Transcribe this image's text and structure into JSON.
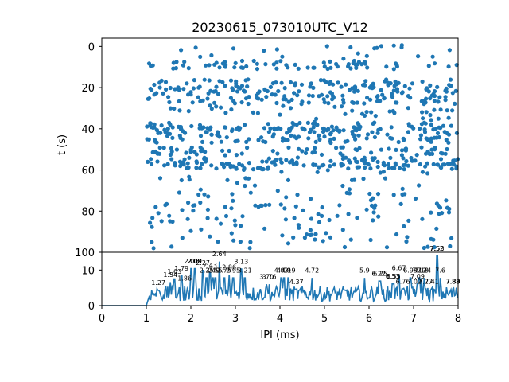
{
  "chart_data": [
    {
      "type": "scatter",
      "title": "20230615_073010UTC_V12",
      "ylabel": "t (s)",
      "xlim": [
        0,
        8
      ],
      "ylim": [
        100,
        -4
      ],
      "y_inverted": true,
      "yticks": [
        0,
        20,
        40,
        60,
        80,
        100
      ],
      "marker_color": "#1f77b4",
      "x_range_of_points": [
        1.0,
        8.0
      ],
      "event_rows_t": [
        2,
        9,
        18,
        22,
        26,
        30,
        33,
        39,
        41,
        45,
        51,
        56,
        58,
        62,
        68,
        75,
        78,
        81,
        85,
        91,
        95
      ]
    },
    {
      "type": "line",
      "xlabel": "IPI (ms)",
      "xlim": [
        0,
        8
      ],
      "ylim": [
        0,
        15
      ],
      "xticks": [
        0,
        1,
        2,
        3,
        4,
        5,
        6,
        7,
        8
      ],
      "yticks": [
        0,
        10
      ],
      "line_color": "#1f77b4",
      "peak_labels": [
        {
          "x": 1.27,
          "y": 5.8,
          "text": "1.27"
        },
        {
          "x": 1.54,
          "y": 8.1,
          "text": "1.54"
        },
        {
          "x": 1.63,
          "y": 9.0,
          "text": "1.63"
        },
        {
          "x": 1.79,
          "y": 9.9,
          "text": "1.79"
        },
        {
          "x": 1.86,
          "y": 7.0,
          "text": "1.86"
        },
        {
          "x": 2.01,
          "y": 11.9,
          "text": "2.01"
        },
        {
          "x": 2.08,
          "y": 11.9,
          "text": "2.08"
        },
        {
          "x": 2.09,
          "y": 11.9,
          "text": "2.09"
        },
        {
          "x": 2.27,
          "y": 11.4,
          "text": "2.27"
        },
        {
          "x": 2.35,
          "y": 9.3,
          "text": "2.35"
        },
        {
          "x": 2.43,
          "y": 10.8,
          "text": "2.43"
        },
        {
          "x": 2.49,
          "y": 9.3,
          "text": "2.49"
        },
        {
          "x": 2.55,
          "y": 9.3,
          "text": "2.55"
        },
        {
          "x": 2.64,
          "y": 13.9,
          "text": "2.64"
        },
        {
          "x": 2.75,
          "y": 9.3,
          "text": "2.75"
        },
        {
          "x": 2.86,
          "y": 10.2,
          "text": "2.86"
        },
        {
          "x": 2.95,
          "y": 9.3,
          "text": "2.95"
        },
        {
          "x": 3.13,
          "y": 11.8,
          "text": "3.13"
        },
        {
          "x": 3.21,
          "y": 9.3,
          "text": "3.21"
        },
        {
          "x": 3.7,
          "y": 7.5,
          "text": "3.70"
        },
        {
          "x": 3.76,
          "y": 7.5,
          "text": "3.76"
        },
        {
          "x": 4.03,
          "y": 9.3,
          "text": "4.03"
        },
        {
          "x": 4.09,
          "y": 9.3,
          "text": "4.09"
        },
        {
          "x": 4.19,
          "y": 9.3,
          "text": "4.19"
        },
        {
          "x": 4.37,
          "y": 6.0,
          "text": "4.37"
        },
        {
          "x": 4.72,
          "y": 9.3,
          "text": "4.72"
        },
        {
          "x": 5.9,
          "y": 9.3,
          "text": "5.9"
        },
        {
          "x": 6.22,
          "y": 8.4,
          "text": "6.22"
        },
        {
          "x": 6.25,
          "y": 8.4,
          "text": "6.25"
        },
        {
          "x": 6.53,
          "y": 7.6,
          "text": "6.53"
        },
        {
          "x": 6.55,
          "y": 7.6,
          "text": "6.55"
        },
        {
          "x": 6.67,
          "y": 10.0,
          "text": "6.67"
        },
        {
          "x": 6.76,
          "y": 6.2,
          "text": "6.76"
        },
        {
          "x": 6.93,
          "y": 9.3,
          "text": "6.93"
        },
        {
          "x": 7.02,
          "y": 6.2,
          "text": "7.02"
        },
        {
          "x": 7.09,
          "y": 7.6,
          "text": "7.09"
        },
        {
          "x": 7.13,
          "y": 9.3,
          "text": "7.13"
        },
        {
          "x": 7.18,
          "y": 9.3,
          "text": "7.18"
        },
        {
          "x": 7.24,
          "y": 9.3,
          "text": "7.24"
        },
        {
          "x": 7.27,
          "y": 6.2,
          "text": "7.27"
        },
        {
          "x": 7.41,
          "y": 6.2,
          "text": "7.41"
        },
        {
          "x": 7.52,
          "y": 15.5,
          "text": "7.52"
        },
        {
          "x": 7.53,
          "y": 15.5,
          "text": "7.53"
        },
        {
          "x": 7.6,
          "y": 9.3,
          "text": "7.6"
        },
        {
          "x": 7.88,
          "y": 6.2,
          "text": "7.88"
        },
        {
          "x": 7.89,
          "y": 6.2,
          "text": "7.89"
        }
      ]
    }
  ]
}
